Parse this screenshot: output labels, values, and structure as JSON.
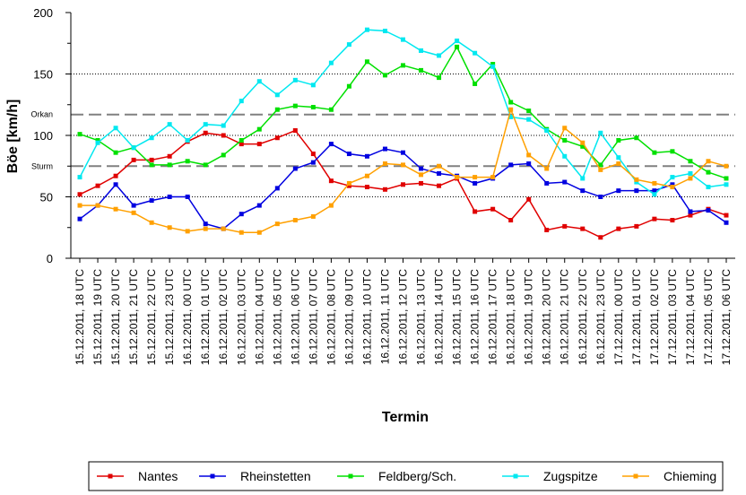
{
  "chart_data": {
    "type": "line",
    "xlabel": "Termin",
    "ylabel": "Böe [km/h]",
    "ylim": [
      0,
      200
    ],
    "yticks": [
      "0",
      "50",
      "100",
      "150",
      "200"
    ],
    "grid": "dotted horizontal at 50, 100, 150",
    "reference_lines": [
      {
        "label": "Orkan",
        "value": 117
      },
      {
        "label": "Sturm",
        "value": 75
      }
    ],
    "legend_position": "bottom",
    "categories": [
      "15.12.2011, 18 UTC",
      "15.12.2011, 19 UTC",
      "15.12.2011, 20 UTC",
      "15.12.2011, 21 UTC",
      "15.12.2011, 22 UTC",
      "15.12.2011, 23 UTC",
      "16.12.2011, 00 UTC",
      "16.12.2011, 01 UTC",
      "16.12.2011, 02 UTC",
      "16.12.2011, 03 UTC",
      "16.12.2011, 04 UTC",
      "16.12.2011, 05 UTC",
      "16.12.2011, 06 UTC",
      "16.12.2011, 07 UTC",
      "16.12.2011, 08 UTC",
      "16.12.2011, 09 UTC",
      "16.12.2011, 10 UTC",
      "16.12.2011, 11 UTC",
      "16.12.2011, 12 UTC",
      "16.12.2011, 13 UTC",
      "16.12.2011, 14 UTC",
      "16.12.2011, 15 UTC",
      "16.12.2011, 16 UTC",
      "16.12.2011, 17 UTC",
      "16.12.2011, 18 UTC",
      "16.12.2011, 19 UTC",
      "16.12.2011, 20 UTC",
      "16.12.2011, 21 UTC",
      "16.12.2011, 22 UTC",
      "16.12.2011, 23 UTC",
      "17.12.2011, 00 UTC",
      "17.12.2011, 01 UTC",
      "17.12.2011, 02 UTC",
      "17.12.2011, 03 UTC",
      "17.12.2011, 04 UTC",
      "17.12.2011, 05 UTC",
      "17.12.2011, 06 UTC"
    ],
    "series": [
      {
        "name": "Nantes",
        "color": "#e00000",
        "values": [
          52,
          59,
          67,
          80,
          80,
          83,
          95,
          102,
          100,
          93,
          93,
          98,
          104,
          85,
          63,
          59,
          58,
          56,
          60,
          61,
          59,
          65,
          38,
          40,
          31,
          48,
          23,
          26,
          24,
          17,
          24,
          26,
          32,
          31,
          35,
          40,
          35
        ]
      },
      {
        "name": "Rheinstetten",
        "color": "#0000e0",
        "values": [
          32,
          43,
          60,
          43,
          47,
          50,
          50,
          28,
          24,
          36,
          43,
          57,
          73,
          78,
          93,
          85,
          83,
          89,
          86,
          73,
          69,
          67,
          61,
          65,
          76,
          77,
          61,
          62,
          55,
          50,
          55,
          55,
          55,
          60,
          38,
          39,
          29
        ]
      },
      {
        "name": "Feldberg/Sch.",
        "color": "#00e000",
        "values": [
          101,
          96,
          86,
          90,
          76,
          76,
          79,
          76,
          84,
          96,
          105,
          121,
          124,
          123,
          121,
          140,
          160,
          149,
          157,
          153,
          147,
          172,
          142,
          158,
          127,
          120,
          105,
          96,
          91,
          76,
          96,
          98,
          86,
          87,
          79,
          70,
          65
        ]
      },
      {
        "name": "Zugspitze",
        "color": "#00e8f0",
        "values": [
          66,
          94,
          106,
          90,
          98,
          109,
          96,
          109,
          108,
          128,
          144,
          133,
          145,
          141,
          159,
          174,
          186,
          185,
          178,
          169,
          165,
          177,
          167,
          156,
          115,
          113,
          104,
          83,
          65,
          102,
          82,
          62,
          52,
          66,
          69,
          58,
          60
        ]
      },
      {
        "name": "Chieming",
        "color": "#ffa000",
        "values": [
          43,
          43,
          40,
          37,
          29,
          25,
          22,
          24,
          24,
          21,
          21,
          28,
          31,
          34,
          43,
          61,
          67,
          77,
          76,
          68,
          75,
          66,
          66,
          66,
          121,
          84,
          73,
          106,
          94,
          72,
          77,
          64,
          61,
          58,
          65,
          79,
          75
        ]
      }
    ]
  }
}
